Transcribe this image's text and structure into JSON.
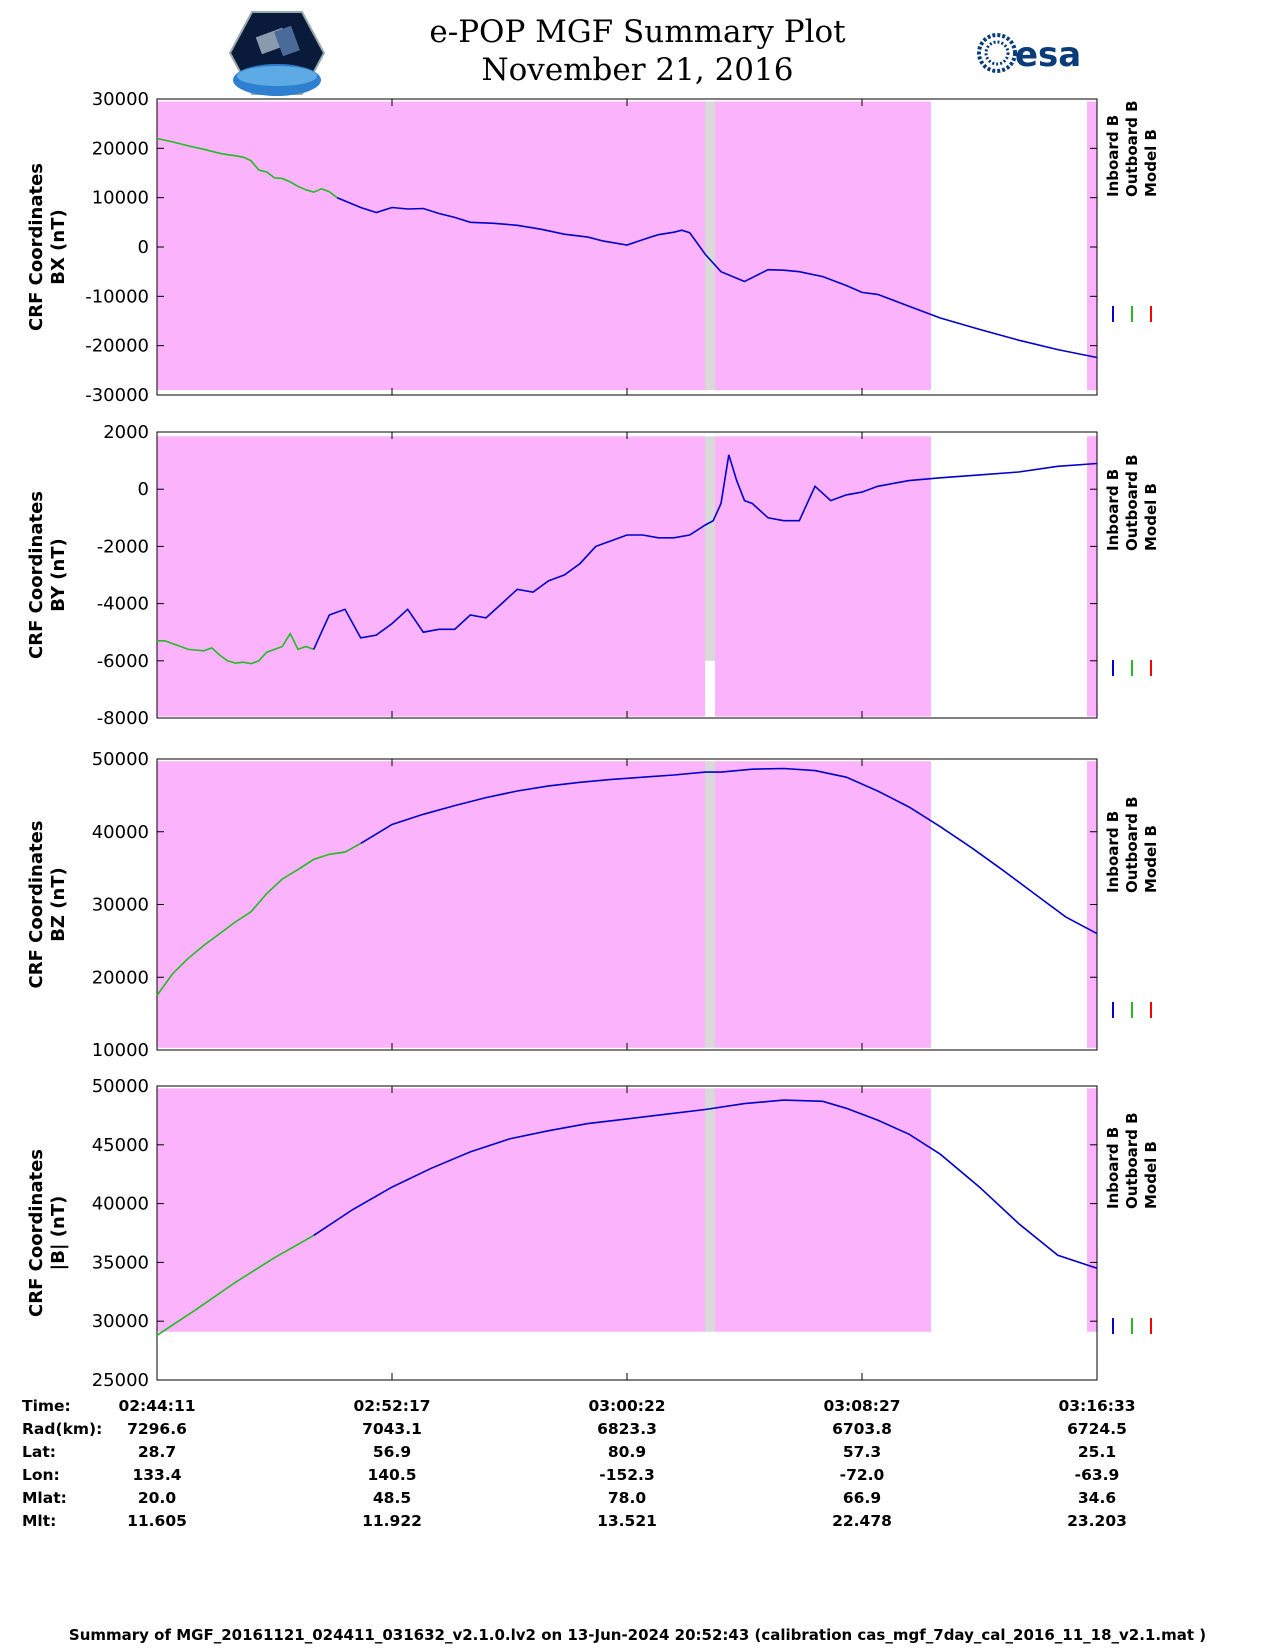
{
  "header": {
    "title": "e-POP MGF Summary Plot",
    "date": "November 21, 2016",
    "logo_left": "e-POP CASSIOPE mission logo",
    "logo_right": "esa"
  },
  "colors": {
    "highlight": "#fbb4fc",
    "gap": "#d9d9d9",
    "inboard": "#0000cc",
    "outboard": "#22bb22",
    "model": "#ff0000"
  },
  "legend": {
    "inboard": "Inboard B",
    "outboard": "Outboard B",
    "model": "Model B"
  },
  "chart_data": [
    {
      "type": "line",
      "ylabel_1": "CRF Coordinates",
      "ylabel_2": "BX (nT)",
      "ylim": [
        -30000,
        30000
      ],
      "yticks": [
        30000,
        20000,
        10000,
        0,
        -10000,
        -20000,
        -30000
      ],
      "ytick_labels": [
        "30000",
        "20000",
        "10000",
        "0",
        "-10000",
        "-20000",
        "-30000"
      ],
      "highlight_band": [
        -29000,
        29500
      ],
      "outboard": {
        "x": [
          0,
          2,
          4,
          6,
          7,
          8,
          9,
          10,
          11,
          12,
          13,
          14,
          15,
          16,
          17,
          18,
          19,
          20,
          21,
          22,
          23
        ],
        "y": [
          22000,
          21300,
          20500,
          19800,
          19400,
          19000,
          18700,
          18500,
          18200,
          17500,
          15600,
          15200,
          14000,
          13900,
          13200,
          12300,
          11600,
          11100,
          11800,
          11200,
          10000
        ]
      },
      "inboard": {
        "x": [
          23,
          26,
          28,
          30,
          32,
          34,
          36,
          38,
          40,
          43,
          46,
          49,
          52,
          55,
          57,
          60,
          63,
          64,
          66,
          67,
          68,
          70,
          72,
          75,
          78,
          80,
          82,
          85,
          88,
          90,
          92,
          96,
          100,
          105,
          110,
          115,
          120
        ],
        "y": [
          10000,
          8000,
          7000,
          8000,
          7700,
          7800,
          6800,
          6000,
          5000,
          4800,
          4400,
          3600,
          2600,
          2000,
          1200,
          400,
          2000,
          2500,
          3000,
          3400,
          2900,
          -1500,
          -5000,
          -7000,
          -4600,
          -4700,
          -5000,
          -6000,
          -7800,
          -9200,
          -9600,
          -12000,
          -14400,
          -16700,
          -18900,
          -20800,
          -22400
        ]
      },
      "model": {
        "x": [],
        "y": []
      }
    },
    {
      "type": "line",
      "ylabel_1": "CRF Coordinates",
      "ylabel_2": "BY (nT)",
      "ylim": [
        -8000,
        2000
      ],
      "yticks": [
        2000,
        0,
        -2000,
        -4000,
        -6000,
        -8000
      ],
      "ytick_labels": [
        "2000",
        "0",
        "-2000",
        "-4000",
        "-6000",
        "-8000"
      ],
      "highlight_band": [
        -7950,
        1850
      ],
      "outboard": {
        "x": [
          0,
          1,
          2,
          4,
          6,
          7,
          8,
          9,
          10,
          11,
          12,
          13,
          14,
          15,
          16,
          17,
          18,
          19,
          20
        ],
        "y": [
          -5300,
          -5300,
          -5400,
          -5600,
          -5650,
          -5550,
          -5800,
          -6000,
          -6080,
          -6050,
          -6100,
          -6000,
          -5700,
          -5600,
          -5500,
          -5050,
          -5600,
          -5500,
          -5600
        ]
      },
      "inboard": {
        "x": [
          20,
          22,
          24,
          26,
          28,
          30,
          32,
          34,
          36,
          38,
          40,
          42,
          44,
          46,
          48,
          50,
          52,
          54,
          56,
          58,
          60,
          62,
          64,
          66,
          68,
          70,
          71,
          72,
          73,
          74,
          75,
          76,
          78,
          80,
          82,
          84,
          86,
          88,
          90,
          92,
          96,
          100,
          105,
          110,
          115,
          120
        ],
        "y": [
          -5600,
          -4400,
          -4200,
          -5200,
          -5100,
          -4700,
          -4200,
          -5000,
          -4900,
          -4900,
          -4400,
          -4500,
          -4000,
          -3500,
          -3600,
          -3200,
          -3000,
          -2600,
          -2000,
          -1800,
          -1600,
          -1600,
          -1700,
          -1700,
          -1600,
          -1250,
          -1100,
          -500,
          1200,
          300,
          -400,
          -500,
          -1000,
          -1100,
          -1100,
          100,
          -400,
          -200,
          -100,
          100,
          300,
          400,
          500,
          600,
          800,
          900
        ]
      },
      "model": {
        "x": [],
        "y": []
      }
    },
    {
      "type": "line",
      "ylabel_1": "CRF Coordinates",
      "ylabel_2": "BZ (nT)",
      "ylim": [
        10000,
        50000
      ],
      "yticks": [
        50000,
        40000,
        30000,
        20000,
        10000
      ],
      "ytick_labels": [
        "50000",
        "40000",
        "30000",
        "20000",
        "10000"
      ],
      "highlight_band": [
        10300,
        49700
      ],
      "outboard": {
        "x": [
          0,
          2,
          4,
          6,
          8,
          10,
          12,
          14,
          16,
          18,
          20,
          22,
          24,
          26
        ],
        "y": [
          17500,
          20500,
          22600,
          24400,
          26000,
          27600,
          29000,
          31500,
          33500,
          34800,
          36200,
          36900,
          37200,
          38400
        ]
      },
      "inboard": {
        "x": [
          26,
          30,
          34,
          38,
          42,
          46,
          50,
          54,
          58,
          62,
          66,
          70,
          72,
          76,
          80,
          84,
          88,
          92,
          96,
          100,
          104,
          108,
          112,
          116,
          120
        ],
        "y": [
          38400,
          41000,
          42400,
          43600,
          44700,
          45600,
          46300,
          46800,
          47200,
          47500,
          47800,
          48200,
          48200,
          48600,
          48700,
          48400,
          47500,
          45600,
          43400,
          40700,
          37800,
          34700,
          31500,
          28300,
          26000
        ]
      },
      "model": {
        "x": [],
        "y": []
      }
    },
    {
      "type": "line",
      "ylabel_1": "CRF Coordinates",
      "ylabel_2": "|B| (nT)",
      "ylim": [
        25000,
        50000
      ],
      "yticks": [
        50000,
        45000,
        40000,
        35000,
        30000,
        25000
      ],
      "ytick_labels": [
        "50000",
        "45000",
        "40000",
        "35000",
        "30000",
        "25000"
      ],
      "highlight_band": [
        29100,
        49800
      ],
      "outboard": {
        "x": [
          0,
          5,
          10,
          15,
          20
        ],
        "y": [
          28800,
          31000,
          33300,
          35400,
          37300
        ]
      },
      "inboard": {
        "x": [
          20,
          25,
          30,
          35,
          40,
          45,
          50,
          55,
          60,
          65,
          70,
          75,
          80,
          85,
          88,
          92,
          96,
          100,
          105,
          110,
          115,
          120
        ],
        "y": [
          37300,
          39500,
          41400,
          43000,
          44400,
          45500,
          46200,
          46800,
          47200,
          47600,
          48000,
          48500,
          48800,
          48700,
          48100,
          47100,
          45900,
          44200,
          41400,
          38300,
          35600,
          34500
        ]
      },
      "model": {
        "x": [],
        "y": []
      }
    }
  ],
  "info": {
    "labels": [
      "Time:",
      "Rad(km):",
      "Lat:",
      "Lon:",
      "Mlat:",
      "Mlt:"
    ],
    "columns": [
      [
        "02:44:11",
        "7296.6",
        "28.7",
        "133.4",
        "20.0",
        "11.605"
      ],
      [
        "02:52:17",
        "7043.1",
        "56.9",
        "140.5",
        "48.5",
        "11.922"
      ],
      [
        "03:00:22",
        "6823.3",
        "80.9",
        "-152.3",
        "78.0",
        "13.521"
      ],
      [
        "03:08:27",
        "6703.8",
        "57.3",
        "-72.0",
        "66.9",
        "22.478"
      ],
      [
        "03:16:33",
        "6724.5",
        "25.1",
        "-63.9",
        "34.6",
        "23.203"
      ]
    ]
  },
  "footer": "Summary of MGF_20161121_024411_031632_v2.1.0.lv2 on 13-Jun-2024 20:52:43 (calibration cas_mgf_7day_cal_2016_11_18_v2.1.mat )"
}
